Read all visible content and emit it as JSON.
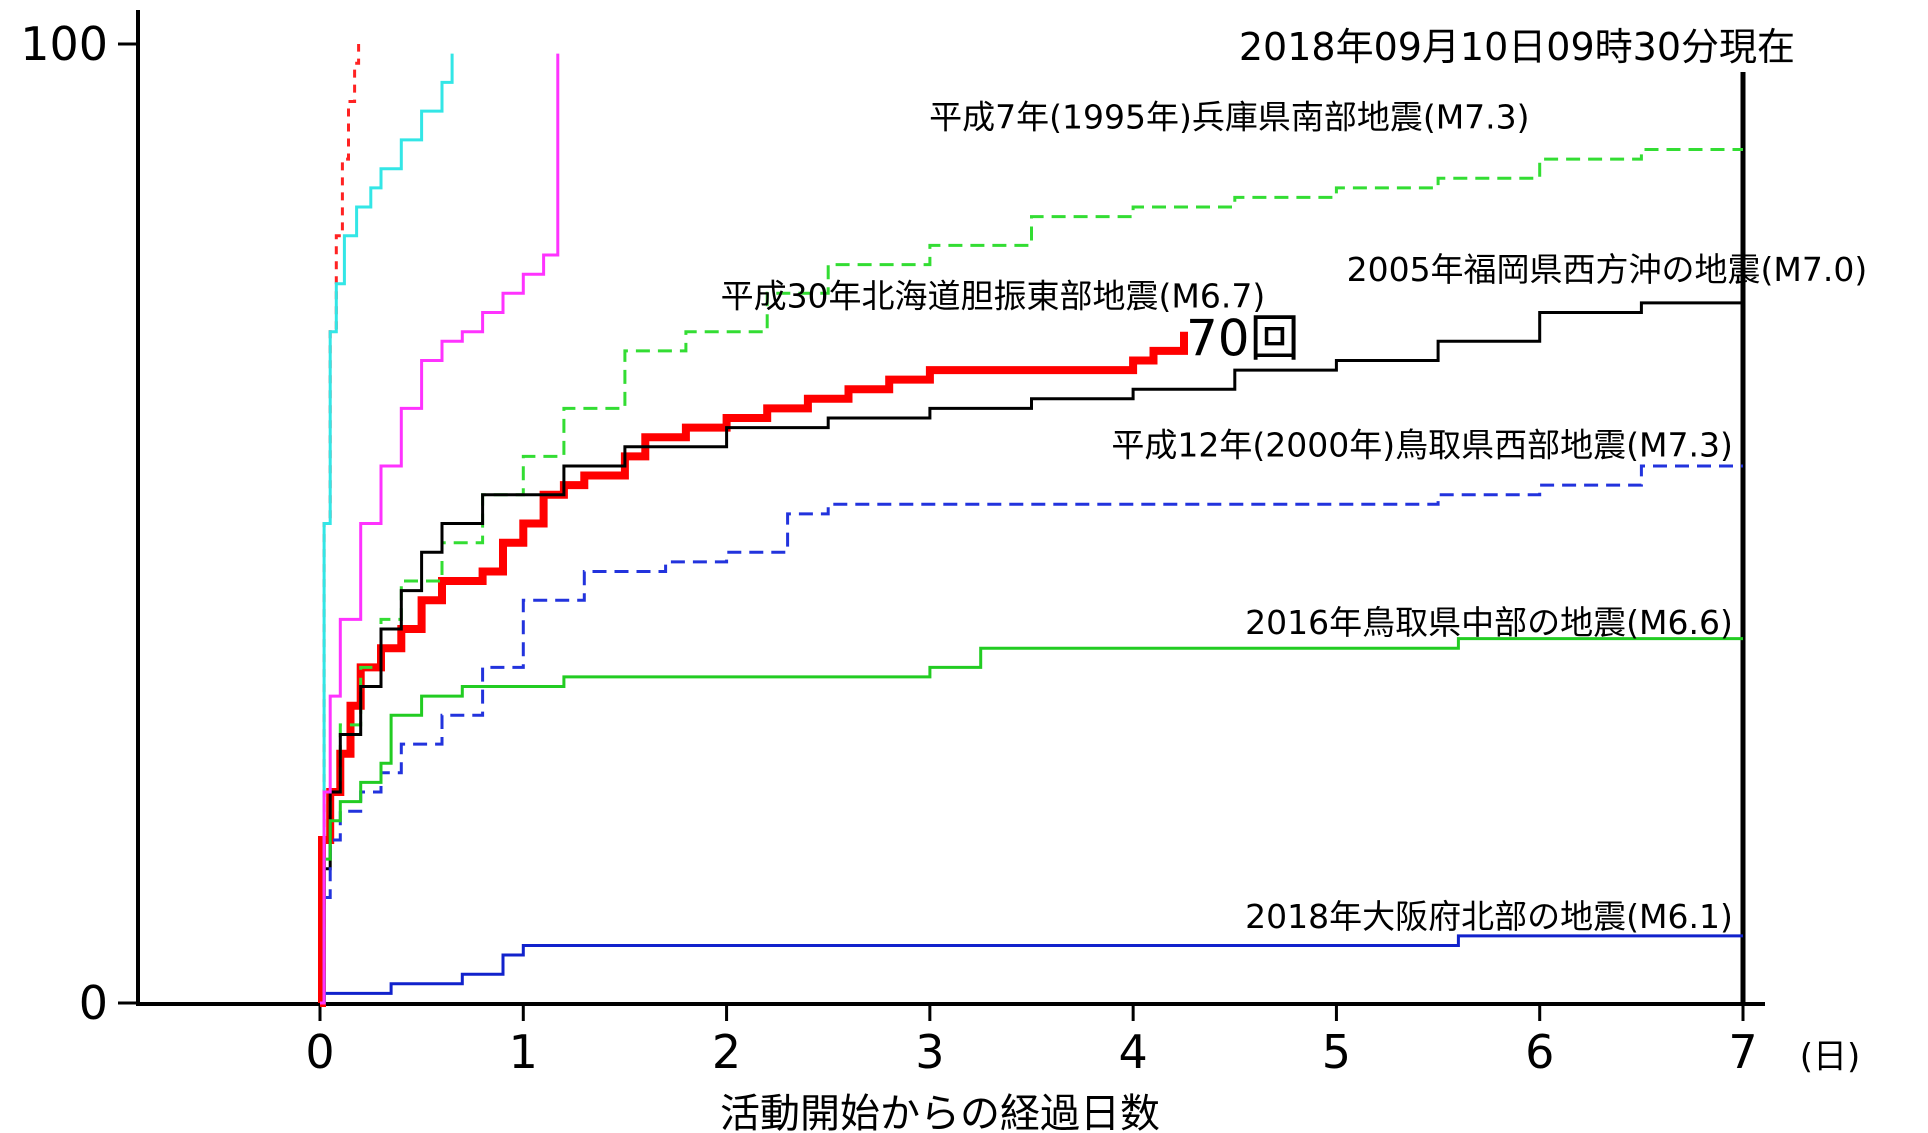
{
  "chart_data": {
    "type": "line",
    "title": "",
    "timestamp": "2018年09月10日09時30分現在",
    "xlabel": "活動開始からの経過日数",
    "x_unit": "(日)",
    "ylabel": "",
    "xlim": [
      -0.9,
      7
    ],
    "ylim": [
      0,
      100
    ],
    "x_ticks": [
      "0",
      "1",
      "2",
      "3",
      "4",
      "5",
      "6",
      "7"
    ],
    "y_ticks": [
      "0",
      "100"
    ],
    "grid": false,
    "series": [
      {
        "name": "平成30年北海道胆振東部地震(M6.7)",
        "color": "#ff0000",
        "width": 8,
        "dash": "",
        "end_label": "70回",
        "points": [
          [
            0,
            0
          ],
          [
            0.01,
            17
          ],
          [
            0.05,
            22
          ],
          [
            0.1,
            26
          ],
          [
            0.15,
            31
          ],
          [
            0.2,
            35
          ],
          [
            0.3,
            37
          ],
          [
            0.4,
            39
          ],
          [
            0.5,
            42
          ],
          [
            0.6,
            44
          ],
          [
            0.7,
            44
          ],
          [
            0.8,
            45
          ],
          [
            0.9,
            48
          ],
          [
            1.0,
            50
          ],
          [
            1.1,
            53
          ],
          [
            1.2,
            54
          ],
          [
            1.3,
            55
          ],
          [
            1.5,
            57
          ],
          [
            1.6,
            59
          ],
          [
            1.8,
            60
          ],
          [
            2.0,
            61
          ],
          [
            2.2,
            62
          ],
          [
            2.4,
            63
          ],
          [
            2.6,
            64
          ],
          [
            2.8,
            65
          ],
          [
            3.0,
            66
          ],
          [
            3.4,
            66
          ],
          [
            3.8,
            66
          ],
          [
            4.0,
            67
          ],
          [
            4.1,
            68
          ],
          [
            4.25,
            70
          ]
        ]
      },
      {
        "name": "平成7年(1995年)兵庫県南部地震(M7.3)",
        "color": "#33dd33",
        "width": 3,
        "dash": "14,8",
        "points": [
          [
            0,
            0
          ],
          [
            0.02,
            15
          ],
          [
            0.05,
            22
          ],
          [
            0.1,
            29
          ],
          [
            0.2,
            35
          ],
          [
            0.3,
            40
          ],
          [
            0.4,
            44
          ],
          [
            0.6,
            48
          ],
          [
            0.8,
            53
          ],
          [
            1.0,
            57
          ],
          [
            1.2,
            62
          ],
          [
            1.5,
            68
          ],
          [
            1.8,
            70
          ],
          [
            2.2,
            74
          ],
          [
            2.5,
            77
          ],
          [
            3.0,
            79
          ],
          [
            3.5,
            82
          ],
          [
            4.0,
            83
          ],
          [
            4.5,
            84
          ],
          [
            5.0,
            85
          ],
          [
            5.5,
            86
          ],
          [
            6.0,
            88
          ],
          [
            6.5,
            89
          ],
          [
            7,
            89
          ]
        ]
      },
      {
        "name": "2005年福岡県西方沖の地震(M7.0)",
        "color": "#000000",
        "width": 3,
        "dash": "",
        "points": [
          [
            0,
            0
          ],
          [
            0.02,
            14
          ],
          [
            0.05,
            22
          ],
          [
            0.1,
            28
          ],
          [
            0.2,
            33
          ],
          [
            0.3,
            39
          ],
          [
            0.4,
            43
          ],
          [
            0.5,
            47
          ],
          [
            0.6,
            50
          ],
          [
            0.8,
            53
          ],
          [
            1.0,
            53
          ],
          [
            1.2,
            56
          ],
          [
            1.5,
            58
          ],
          [
            2.0,
            60
          ],
          [
            2.5,
            61
          ],
          [
            3.0,
            62
          ],
          [
            3.5,
            63
          ],
          [
            4.0,
            64
          ],
          [
            4.5,
            66
          ],
          [
            5.0,
            67
          ],
          [
            5.5,
            69
          ],
          [
            6.0,
            72
          ],
          [
            6.5,
            73
          ],
          [
            7,
            73
          ]
        ]
      },
      {
        "name": "平成12年(2000年)鳥取県西部地震(M7.3)",
        "color": "#2233dd",
        "width": 3,
        "dash": "14,8",
        "points": [
          [
            0,
            0
          ],
          [
            0.02,
            11
          ],
          [
            0.05,
            17
          ],
          [
            0.1,
            20
          ],
          [
            0.2,
            22
          ],
          [
            0.3,
            24
          ],
          [
            0.4,
            27
          ],
          [
            0.6,
            30
          ],
          [
            0.8,
            35
          ],
          [
            1.0,
            42
          ],
          [
            1.3,
            45
          ],
          [
            1.7,
            46
          ],
          [
            2.0,
            47
          ],
          [
            2.3,
            51
          ],
          [
            2.5,
            52
          ],
          [
            3.0,
            52
          ],
          [
            3.5,
            52
          ],
          [
            4.0,
            52
          ],
          [
            4.5,
            52
          ],
          [
            5.0,
            52
          ],
          [
            5.5,
            53
          ],
          [
            6.0,
            54
          ],
          [
            6.5,
            56
          ],
          [
            7,
            56
          ]
        ]
      },
      {
        "name": "2016年鳥取県中部の地震(M6.6)",
        "color": "#22cc22",
        "width": 3,
        "dash": "",
        "points": [
          [
            0,
            0
          ],
          [
            0.02,
            15
          ],
          [
            0.05,
            19
          ],
          [
            0.1,
            21
          ],
          [
            0.2,
            23
          ],
          [
            0.3,
            25
          ],
          [
            0.35,
            30
          ],
          [
            0.5,
            32
          ],
          [
            0.7,
            33
          ],
          [
            1.0,
            33
          ],
          [
            1.2,
            34
          ],
          [
            2.0,
            34
          ],
          [
            3.0,
            35
          ],
          [
            3.25,
            37
          ],
          [
            4.0,
            37
          ],
          [
            5.0,
            37
          ],
          [
            5.6,
            38
          ],
          [
            7,
            38
          ]
        ]
      },
      {
        "name": "2018年大阪府北部の地震(M6.1)",
        "color": "#1122cc",
        "width": 3,
        "dash": "",
        "points": [
          [
            0,
            0
          ],
          [
            0.02,
            1
          ],
          [
            0.35,
            2
          ],
          [
            0.7,
            3
          ],
          [
            0.9,
            5
          ],
          [
            1.0,
            6
          ],
          [
            2.0,
            6
          ],
          [
            3.0,
            6
          ],
          [
            4.0,
            6
          ],
          [
            5.0,
            6
          ],
          [
            5.6,
            7
          ],
          [
            7,
            7
          ]
        ]
      },
      {
        "name": "",
        "color": "#ff2222",
        "width": 3,
        "dash": "8,7",
        "points": [
          [
            0,
            0
          ],
          [
            0.02,
            50
          ],
          [
            0.05,
            70
          ],
          [
            0.08,
            80
          ],
          [
            0.11,
            88
          ],
          [
            0.14,
            94
          ],
          [
            0.17,
            98
          ],
          [
            0.19,
            100
          ]
        ]
      },
      {
        "name": "",
        "color": "#33e6e6",
        "width": 3,
        "dash": "",
        "points": [
          [
            0,
            0
          ],
          [
            0.02,
            50
          ],
          [
            0.05,
            70
          ],
          [
            0.08,
            75
          ],
          [
            0.12,
            80
          ],
          [
            0.18,
            83
          ],
          [
            0.25,
            85
          ],
          [
            0.3,
            87
          ],
          [
            0.4,
            90
          ],
          [
            0.5,
            93
          ],
          [
            0.6,
            96
          ],
          [
            0.65,
            99
          ]
        ]
      },
      {
        "name": "",
        "color": "#ff33ff",
        "width": 3,
        "dash": "",
        "points": [
          [
            0,
            0
          ],
          [
            0.02,
            22
          ],
          [
            0.05,
            32
          ],
          [
            0.1,
            40
          ],
          [
            0.2,
            50
          ],
          [
            0.3,
            56
          ],
          [
            0.4,
            62
          ],
          [
            0.5,
            67
          ],
          [
            0.6,
            69
          ],
          [
            0.7,
            70
          ],
          [
            0.8,
            72
          ],
          [
            0.9,
            74
          ],
          [
            1.0,
            76
          ],
          [
            1.1,
            78
          ],
          [
            1.17,
            80
          ],
          [
            1.17,
            99
          ]
        ]
      }
    ],
    "annotations": [
      {
        "text": "平成7年(1995年)兵庫県南部地震(M7.3)",
        "anchor": "end",
        "at": [
          5.95,
          91.2
        ]
      },
      {
        "text": "平成30年北海道胆振東部地震(M6.7)",
        "anchor": "end",
        "at": [
          4.65,
          72.5
        ]
      },
      {
        "text": "2005年福岡県西方沖の地震(M7.0)",
        "anchor": "start",
        "at": [
          5.05,
          75.3
        ]
      },
      {
        "text": "平成12年(2000年)鳥取県西部地震(M7.3)",
        "anchor": "end",
        "at": [
          6.95,
          57.0
        ]
      },
      {
        "text": "2016年鳥取県中部の地震(M6.6)",
        "anchor": "end",
        "at": [
          6.95,
          38.5
        ]
      },
      {
        "text": "2018年大阪府北部の地震(M6.1)",
        "anchor": "end",
        "at": [
          6.95,
          7.8
        ]
      }
    ]
  }
}
